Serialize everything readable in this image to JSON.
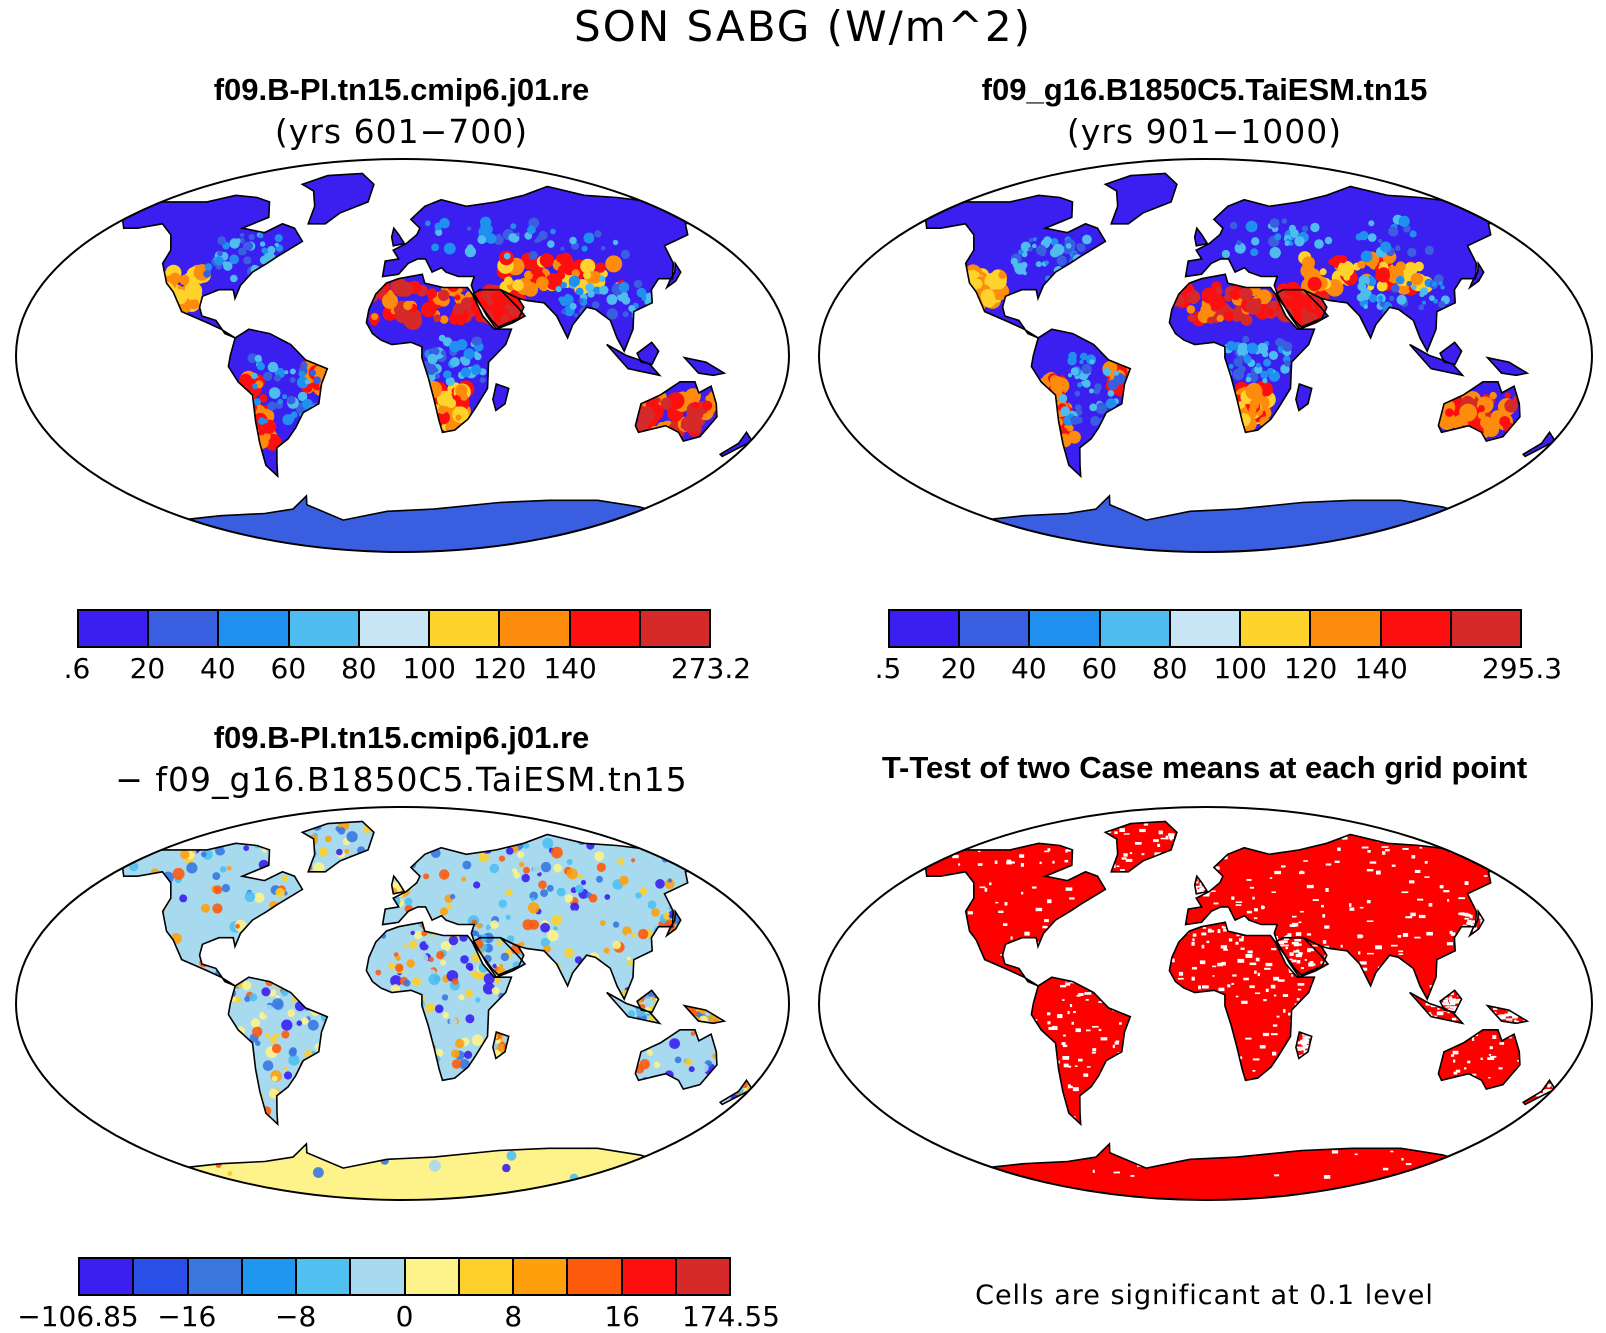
{
  "title": "SON SABG (W/m^2)",
  "panels": [
    {
      "title": "f09.B-PI.tn15.cmip6.j01.re",
      "subtitle": "(yrs 601−700)",
      "type": "absolute",
      "colorbar": {
        "colors": [
          "#3a1ff0",
          "#3a5ee0",
          "#1f90f0",
          "#4fbcf0",
          "#c9e6f7",
          "#fdd32c",
          "#fe8c0c",
          "#fe0f0f",
          "#d62a2a"
        ],
        "labels": [
          ".6",
          "20",
          "40",
          "60",
          "80",
          "100",
          "120",
          "140",
          "273.2"
        ]
      }
    },
    {
      "title": "f09_g16.B1850C5.TaiESM.tn15",
      "subtitle": "(yrs 901−1000)",
      "type": "absolute",
      "colorbar": {
        "colors": [
          "#3a1ff0",
          "#3a5ee0",
          "#1f90f0",
          "#4fbcf0",
          "#c9e6f7",
          "#fdd32c",
          "#fe8c0c",
          "#fe0f0f",
          "#d62a2a"
        ],
        "labels": [
          ".5",
          "20",
          "40",
          "60",
          "80",
          "100",
          "120",
          "140",
          "295.3"
        ]
      }
    },
    {
      "title": "f09.B-PI.tn15.cmip6.j01.re",
      "subtitle": "− f09_g16.B1850C5.TaiESM.tn15",
      "type": "difference",
      "colorbar": {
        "colors": [
          "#3a1ff0",
          "#2a4fe8",
          "#3a78e0",
          "#1f96f0",
          "#4fc0f0",
          "#a7d9ef",
          "#fdf38a",
          "#fdcf2a",
          "#fea00c",
          "#fe5a0c",
          "#fe0f0f",
          "#d62a2a"
        ],
        "labels": [
          "−106.85",
          "−16",
          "−8",
          "0",
          "8",
          "16",
          "174.55"
        ]
      }
    },
    {
      "title": "T-Test of two Case means at each grid point",
      "type": "significance",
      "note": "Cells are significant at 0.1 level",
      "color": "#fe0000"
    }
  ]
}
